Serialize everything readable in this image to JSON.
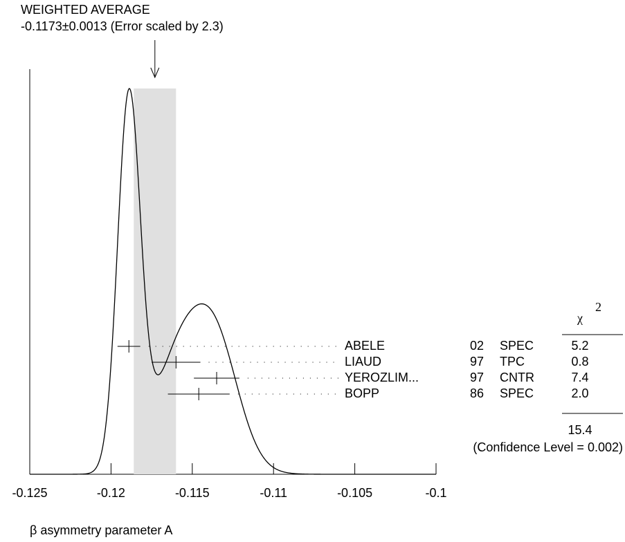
{
  "chart_data": {
    "type": "ideogram",
    "title": "WEIGHTED AVERAGE",
    "subtitle": "-0.1173±0.0013 (Error scaled by 2.3)",
    "x_label": "β asymmetry parameter A",
    "average": -0.1173,
    "average_error": 0.0013,
    "xlim": [
      -0.125,
      -0.1
    ],
    "xticks": [
      -0.125,
      -0.12,
      -0.115,
      -0.11,
      -0.105,
      -0.1
    ],
    "names": [
      "ABELE",
      "LIAUD",
      "YEROZLIM...",
      "BOPP"
    ],
    "years": [
      "02",
      "97",
      "97",
      "86"
    ],
    "techniques": [
      "SPEC",
      "TPC",
      "CNTR",
      "SPEC"
    ],
    "values": [
      -0.1189,
      -0.116,
      -0.1135,
      -0.1146
    ],
    "errors": [
      0.0007,
      0.0015,
      0.0014,
      0.0019
    ],
    "chi2_symbol": "χ",
    "chi2_exponent": "2",
    "chi2": [
      5.2,
      0.8,
      7.4,
      {
        "value": 2,
        "label": "2.0"
      }
    ],
    "chi2_total": 15.4,
    "confidence_label": "(Confidence Level = 0.002)"
  }
}
